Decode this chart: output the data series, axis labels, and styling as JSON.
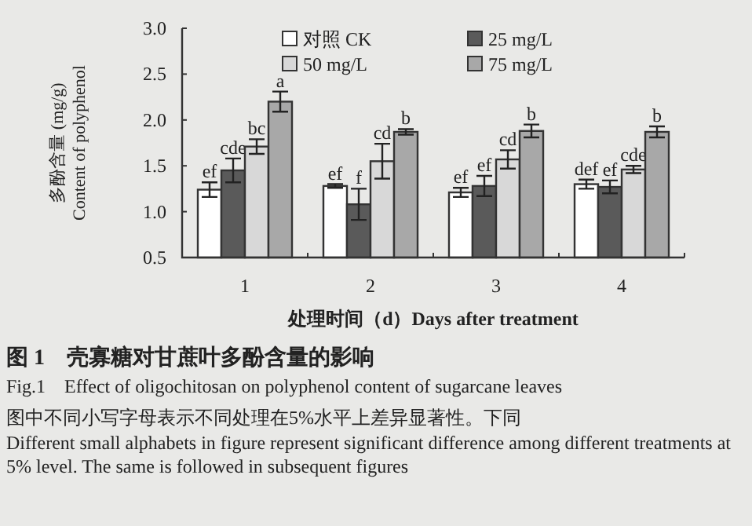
{
  "chart_data": {
    "type": "bar",
    "title": "图 1　壳寡糖对甘蔗叶多酚含量的影响",
    "subtitle": "Fig.1　Effect of oligochitosan on polyphenol content of sugarcane leaves",
    "xlabel": "处理时间（d）Days after treatment",
    "ylabel": "多酚含量 (mg/g) Content of polyphenol",
    "categories": [
      "1",
      "2",
      "3",
      "4"
    ],
    "series": [
      {
        "name": "对照 CK",
        "color": "#ffffff",
        "values": [
          1.24,
          1.28,
          1.21,
          1.3
        ],
        "errors": [
          0.08,
          0.02,
          0.05,
          0.05
        ],
        "value_labels": [
          "ef",
          "ef",
          "ef",
          "def"
        ]
      },
      {
        "name": "25 mg/L",
        "color": "#5a5a5a",
        "values": [
          1.45,
          1.08,
          1.28,
          1.27
        ],
        "errors": [
          0.13,
          0.17,
          0.11,
          0.07
        ],
        "value_labels": [
          "cde",
          "f",
          "ef",
          "ef"
        ]
      },
      {
        "name": "50 mg/L",
        "color": "#d8d8d8",
        "values": [
          1.71,
          1.55,
          1.57,
          1.46
        ],
        "errors": [
          0.08,
          0.19,
          0.1,
          0.04
        ],
        "value_labels": [
          "bc",
          "cd",
          "cd",
          "cde"
        ]
      },
      {
        "name": "75 mg/L",
        "color": "#a8a8a8",
        "values": [
          2.2,
          1.87,
          1.88,
          1.87
        ],
        "errors": [
          0.11,
          0.03,
          0.07,
          0.06
        ],
        "value_labels": [
          "a",
          "b",
          "b",
          "b"
        ]
      }
    ],
    "ylim": [
      0.5,
      3.0
    ],
    "yticks": [
      {
        "value": 0.5,
        "label": "0.5"
      },
      {
        "value": 1,
        "label": "1.0"
      },
      {
        "value": 1.5,
        "label": "1.5"
      },
      {
        "value": 2,
        "label": "2.0"
      },
      {
        "value": 2.5,
        "label": "2.5"
      },
      {
        "value": 3,
        "label": "3.0"
      }
    ],
    "legend": "top",
    "grid": false,
    "annotations": [
      "图中不同小写字母表示不同处理在5%水平上差异显著性。下同",
      "Different small alphabets in figure represent significant difference among different treatments at 5% level. The same is followed in subsequent figures"
    ]
  }
}
